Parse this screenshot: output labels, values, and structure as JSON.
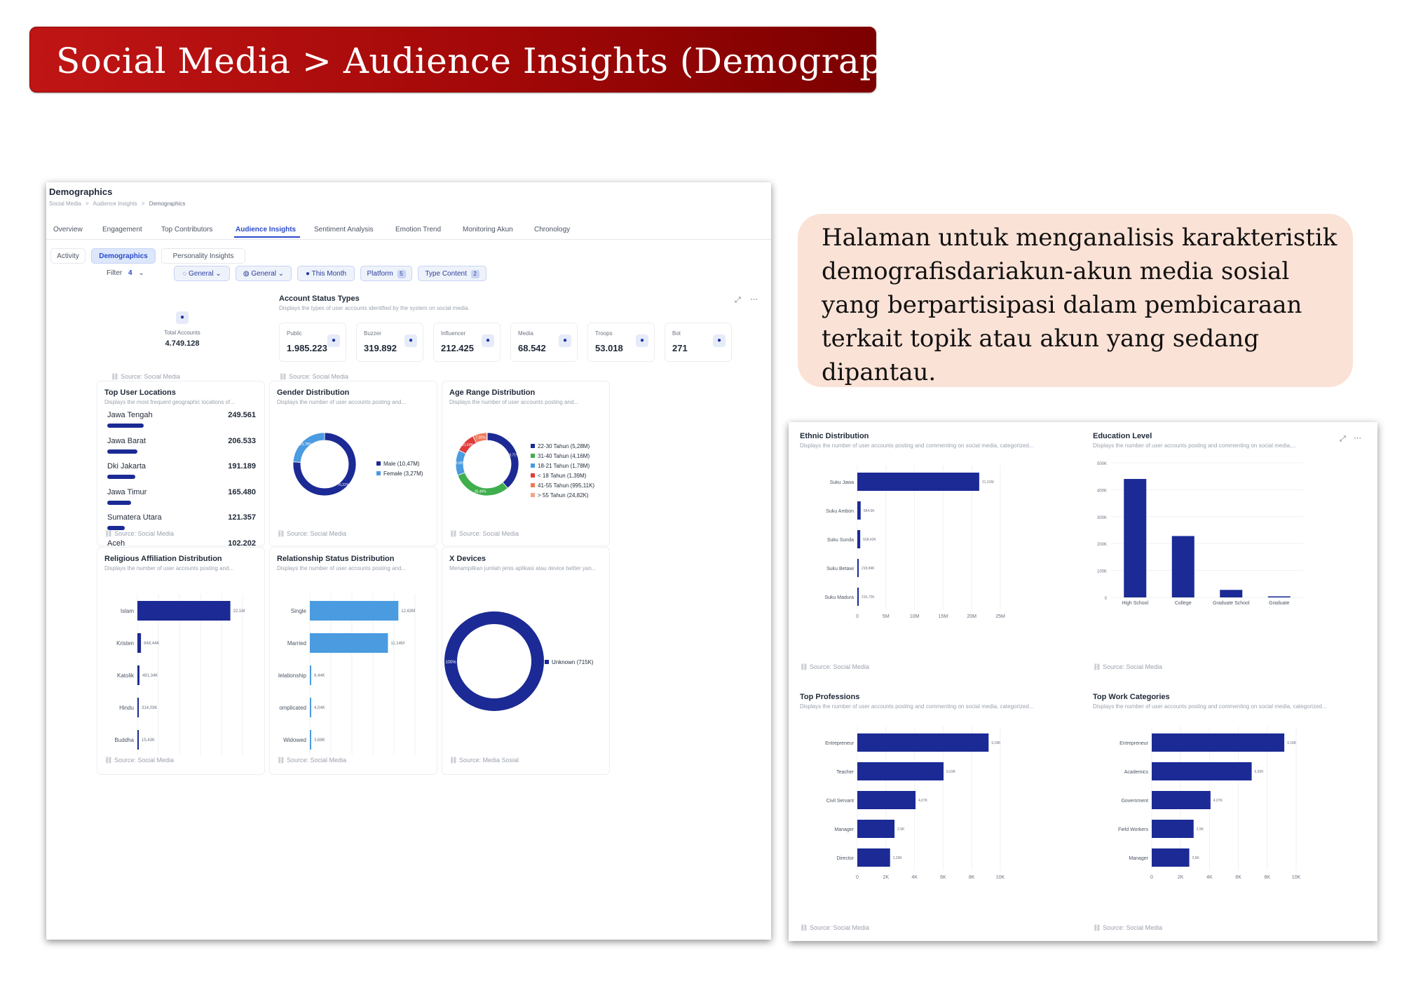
{
  "banner": {
    "title": "Social Media > Audience Insights (Demographics)"
  },
  "callout": {
    "text": "Halaman untuk menganalisis karakteristik demografisdariakun-akun media sosial yang berpartisipasi dalam pembicaraan terkait topik atau akun yang sedang dipantau."
  },
  "colors": {
    "bar_dark": "#1b2a94",
    "bar_light": "#4a9be0",
    "accent": "#2b4acb",
    "banner": "#b00d0d",
    "callout": "#fbe2d6"
  },
  "page": {
    "title": "Demographics",
    "breadcrumb": [
      "Social Media",
      "Audience Insights",
      "Demographics"
    ],
    "breadcrumb_sep": ">",
    "tabs": [
      "Overview",
      "Engagement",
      "Top Contributors",
      "Audience Insights",
      "Sentiment Analysis",
      "Emotion Trend",
      "Monitoring Akun",
      "Chronology"
    ],
    "active_tab": "Audience Insights",
    "subtabs": [
      "Activity",
      "Demographics",
      "Personality Insights"
    ],
    "active_subtab": "Demographics",
    "filter_label": "Filter",
    "filter_count": "4",
    "filters": [
      {
        "icon": "chat-icon",
        "label": "General"
      },
      {
        "icon": "globe-icon",
        "label": "General"
      },
      {
        "icon": "clock-icon",
        "label": "This Month"
      },
      {
        "icon": "",
        "label": "Platform",
        "count": "5"
      },
      {
        "icon": "",
        "label": "Type Content",
        "count": "2"
      }
    ]
  },
  "total_accounts": {
    "label": "Total Accounts",
    "value": "4.749.128",
    "icon": "user-icon",
    "source": "Source: Social Media"
  },
  "account_status": {
    "title": "Account Status Types",
    "subtitle": "Displays the types of user accounts identified by the system on social media.",
    "source": "Source: Social Media",
    "items": [
      {
        "label": "Public",
        "value": "1.985.223",
        "icon": "user-check-icon"
      },
      {
        "label": "Buzzer",
        "value": "319.892",
        "icon": "speaker-icon"
      },
      {
        "label": "Influencer",
        "value": "212.425",
        "icon": "star-icon"
      },
      {
        "label": "Media",
        "value": "68.542",
        "icon": "group-icon"
      },
      {
        "label": "Troops",
        "value": "53.018",
        "icon": "group-icon"
      },
      {
        "label": "Bot",
        "value": "271",
        "icon": "bot-icon"
      }
    ]
  },
  "top_locations": {
    "title": "Top User Locations",
    "subtitle": "Displays the most frequent geographic locations of...",
    "source": "Source: Social Media",
    "items": [
      {
        "name": "Jawa Tengah",
        "value": "249.561",
        "ratio": 1.0
      },
      {
        "name": "Jawa Barat",
        "value": "206.533",
        "ratio": 0.83
      },
      {
        "name": "Dki Jakarta",
        "value": "191.189",
        "ratio": 0.77
      },
      {
        "name": "Jawa Timur",
        "value": "165.480",
        "ratio": 0.66
      },
      {
        "name": "Sumatera Utara",
        "value": "121.357",
        "ratio": 0.49
      },
      {
        "name": "Aceh",
        "value": "102.202",
        "ratio": 0.41
      }
    ]
  },
  "gender": {
    "title": "Gender Distribution",
    "subtitle": "Displays the number of user accounts posting and...",
    "source": "Source: Social Media",
    "legend": [
      "Male (10,47M)",
      "Female (3,27M)"
    ],
    "slice_labels": [
      "76,22%",
      "23,78%"
    ]
  },
  "age": {
    "title": "Age Range Distribution",
    "subtitle": "Displays the number of user accounts posting and...",
    "source": "Source: Social Media",
    "legend": [
      "22-30 Tahun (5,28M)",
      "31-40 Tahun (4,16M)",
      "18-21 Tahun (1,78M)",
      "< 18 Tahun (1,39M)",
      "41-55 Tahun (995,11K)",
      "> 55 Tahun (24,82K)"
    ],
    "slice_labels": [
      "38,71%",
      "30,49%",
      "13,05%",
      "10,19%",
      "7,30%"
    ]
  },
  "xdevices": {
    "title": "X Devices",
    "subtitle": "Menampilkan jumlah jenis aplikasi atau device twitter yan...",
    "source": "Source: Media Sosial",
    "legend": [
      "Unknown (715K)"
    ],
    "slice_labels": [
      "100%"
    ]
  },
  "religion": {
    "title": "Religious Affiliation Distribution",
    "subtitle": "Displays the number of user accounts posting and...",
    "source": "Source: Social Media",
    "labels": [
      "Islam",
      "Kristen",
      "Katolik",
      "Hindu",
      "Buddha"
    ],
    "value_labels": [
      "22,1M",
      "848,44K",
      "491,34K",
      "314,03K",
      "15,43K"
    ],
    "ticks": [
      "0",
      "5M",
      "10M",
      "15M",
      "20M",
      "25M"
    ]
  },
  "relationship": {
    "title": "Relationship Status Distribution",
    "subtitle": "Displays the number of user accounts posting and...",
    "source": "Source: Social Media",
    "labels": [
      "Single",
      "Married",
      "lelationship",
      "omplicated",
      "Widowed"
    ],
    "value_labels": [
      "12,63M",
      "11,14M",
      "6,44K",
      "4,04K",
      "3,68K"
    ],
    "ticks": [
      "0",
      "3M",
      "6M",
      "9M",
      "12M",
      "15M"
    ]
  },
  "ethnic": {
    "title": "Ethnic Distribution",
    "subtitle": "Displays the number of user accounts posting and commenting on social media, categorized...",
    "source": "Source: Social Media",
    "labels": [
      "Suku Jawa",
      "Suku Ambon",
      "Suku Sunda",
      "Suku Betawi",
      "Suku Madura"
    ],
    "value_labels": [
      "21,31M",
      "584,6K",
      "508,42K",
      "218,84K",
      "215,72K"
    ],
    "ticks": [
      "0",
      "5M",
      "10M",
      "15M",
      "20M",
      "25M"
    ]
  },
  "education": {
    "title": "Education Level",
    "subtitle": "Displays the number of user accounts posting and commenting on social media,...",
    "source": "Source: Social Media",
    "labels": [
      "High School",
      "College",
      "Graduate School",
      "Graduate"
    ],
    "ticks": [
      "0",
      "100K",
      "200K",
      "300K",
      "400K",
      "500K"
    ]
  },
  "professions": {
    "title": "Top Professions",
    "subtitle": "Displays the number of user accounts posting and commenting on social media, categorized...",
    "source": "Source: Social Media",
    "labels": [
      "Entrepreneur",
      "Teacher",
      "Civil Servant",
      "Manager",
      "Director"
    ],
    "value_labels": [
      "9,18K",
      "6,03K",
      "4,07K",
      "2,6K",
      "2,29K"
    ],
    "ticks": [
      "0",
      "2K",
      "4K",
      "6K",
      "8K",
      "10K"
    ]
  },
  "work": {
    "title": "Top Work Categories",
    "subtitle": "Displays the number of user accounts posting and commenting on social media, categorized...",
    "source": "Source: Social Media",
    "labels": [
      "Entrepreneur",
      "Academics",
      "Government",
      "Field Workers",
      "Manager"
    ],
    "value_labels": [
      "9,18K",
      "6,92K",
      "4,07K",
      "2,9K",
      "2,6K"
    ],
    "ticks": [
      "0",
      "2K",
      "4K",
      "6K",
      "8K",
      "10K"
    ]
  },
  "chart_data": [
    {
      "type": "bar",
      "orientation": "horizontal",
      "title": "Religious Affiliation Distribution",
      "categories": [
        "Islam",
        "Kristen",
        "Katolik",
        "Hindu",
        "Buddha"
      ],
      "values": [
        22100000,
        848440,
        491340,
        314030,
        15430
      ],
      "xlim": [
        0,
        25000000
      ]
    },
    {
      "type": "bar",
      "orientation": "horizontal",
      "title": "Relationship Status Distribution",
      "categories": [
        "Single",
        "Married",
        "lelationship",
        "omplicated",
        "Widowed"
      ],
      "values": [
        12630000,
        11140000,
        6440,
        4040,
        3680
      ],
      "xlim": [
        0,
        15000000
      ]
    },
    {
      "type": "bar",
      "orientation": "horizontal",
      "title": "Ethnic Distribution",
      "categories": [
        "Suku Jawa",
        "Suku Ambon",
        "Suku Sunda",
        "Suku Betawi",
        "Suku Madura"
      ],
      "values": [
        21310000,
        584600,
        508420,
        218840,
        215720
      ],
      "xlim": [
        0,
        25000000
      ]
    },
    {
      "type": "bar",
      "orientation": "vertical",
      "title": "Education Level",
      "categories": [
        "High School",
        "College",
        "Graduate School",
        "Graduate"
      ],
      "values": [
        440000,
        228000,
        28000,
        4000
      ],
      "ylim": [
        0,
        500000
      ]
    },
    {
      "type": "bar",
      "orientation": "horizontal",
      "title": "Top Professions",
      "categories": [
        "Entrepreneur",
        "Teacher",
        "Civil Servant",
        "Manager",
        "Director"
      ],
      "values": [
        9180,
        6030,
        4070,
        2600,
        2290
      ],
      "xlim": [
        0,
        10000
      ]
    },
    {
      "type": "bar",
      "orientation": "horizontal",
      "title": "Top Work Categories",
      "categories": [
        "Entrepreneur",
        "Academics",
        "Government",
        "Field Workers",
        "Manager"
      ],
      "values": [
        9180,
        6920,
        4070,
        2900,
        2600
      ],
      "xlim": [
        0,
        10000
      ]
    },
    {
      "type": "pie",
      "title": "Gender Distribution",
      "categories": [
        "Male",
        "Female"
      ],
      "values": [
        10.47,
        3.27
      ],
      "unit": "M"
    },
    {
      "type": "pie",
      "title": "Age Range Distribution",
      "categories": [
        "22-30 Tahun",
        "31-40 Tahun",
        "18-21 Tahun",
        "< 18 Tahun",
        "41-55 Tahun",
        "> 55 Tahun"
      ],
      "values": [
        5280000,
        4160000,
        1780000,
        1390000,
        995110,
        24820
      ]
    },
    {
      "type": "pie",
      "title": "X Devices",
      "categories": [
        "Unknown"
      ],
      "values": [
        715000
      ]
    }
  ]
}
